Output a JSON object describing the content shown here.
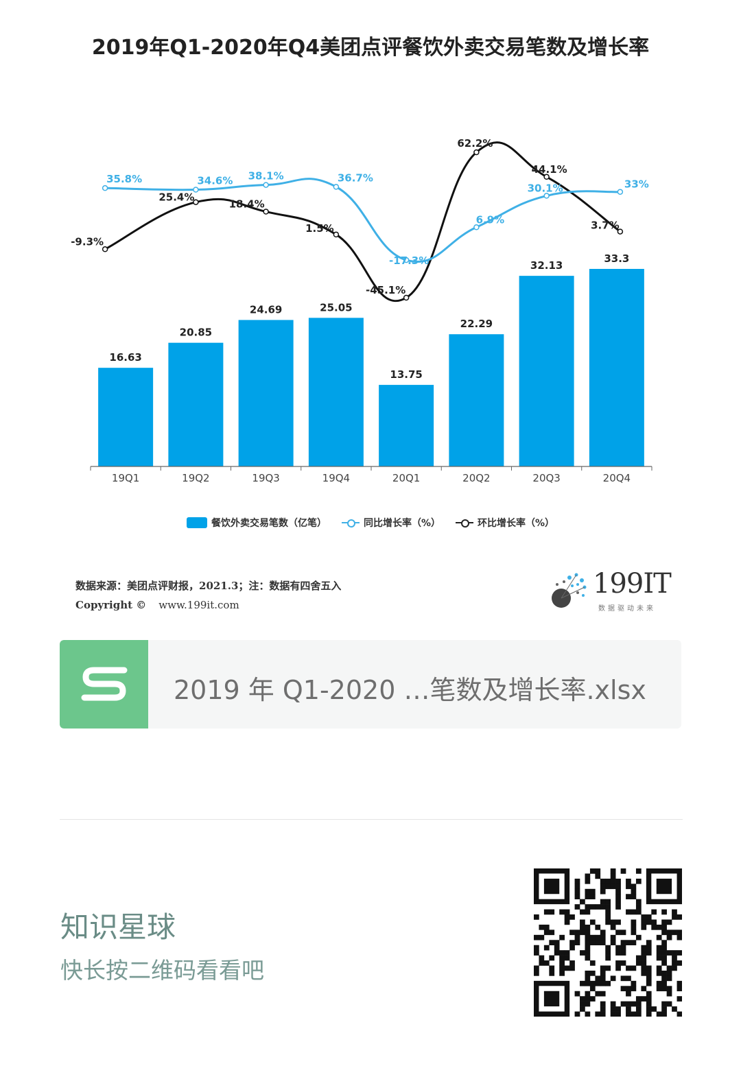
{
  "chart_data": {
    "type": "bar+line",
    "title": "2019年Q1-2020年Q4美团点评餐饮外卖交易笔数及增长率",
    "categories": [
      "19Q1",
      "19Q2",
      "19Q3",
      "19Q4",
      "20Q1",
      "20Q2",
      "20Q3",
      "20Q4"
    ],
    "series": [
      {
        "name": "餐饮外卖交易笔数（亿笔）",
        "type": "bar",
        "color": "#00a2e8",
        "values": [
          16.63,
          20.85,
          24.69,
          25.05,
          13.75,
          22.29,
          32.13,
          33.3
        ],
        "labels": [
          "16.63",
          "20.85",
          "24.69",
          "25.05",
          "13.75",
          "22.29",
          "32.13",
          "33.3"
        ]
      },
      {
        "name": "同比增长率（%）",
        "type": "line",
        "color": "#3fb0e6",
        "values": [
          35.8,
          34.6,
          38.1,
          36.7,
          -17.3,
          6.9,
          30.1,
          33
        ],
        "labels": [
          "35.8%",
          "34.6%",
          "38.1%",
          "36.7%",
          "-17.3%",
          "6.9%",
          "30.1%",
          "33%"
        ]
      },
      {
        "name": "环比增长率（%）",
        "type": "line",
        "color": "#111111",
        "values": [
          -9.3,
          25.4,
          18.4,
          1.5,
          -45.1,
          62.2,
          44.1,
          3.7
        ],
        "labels": [
          "-9.3%",
          "25.4%",
          "18.4%",
          "1.5%",
          "-45.1%",
          "62.2%",
          "44.1%",
          "3.7%"
        ]
      }
    ],
    "legend_position": "bottom",
    "grid": false
  },
  "source": {
    "line1": "数据来源：美团点评财报，2021.3；注：数据有四舍五入",
    "copyright": "Copyright ©",
    "url": "www.199it.com"
  },
  "logo": {
    "text": "199IT",
    "tagline": "数据驱动未来"
  },
  "file_card": {
    "icon": "S",
    "name": "2019 年 Q1-2020 …笔数及增长率.xlsx"
  },
  "planet": {
    "title": "知识星球",
    "subtitle": "快长按二维码看看吧"
  },
  "colors": {
    "bar": "#00a2e8",
    "yoy": "#3fb0e6",
    "qoq": "#111111",
    "file_icon": "#6cc68c"
  }
}
